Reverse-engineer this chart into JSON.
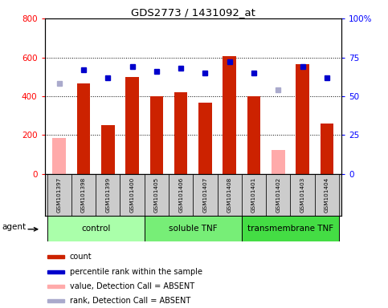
{
  "title": "GDS2773 / 1431092_at",
  "samples": [
    "GSM101397",
    "GSM101398",
    "GSM101399",
    "GSM101400",
    "GSM101405",
    "GSM101406",
    "GSM101407",
    "GSM101408",
    "GSM101401",
    "GSM101402",
    "GSM101403",
    "GSM101404"
  ],
  "count_values": [
    null,
    465,
    250,
    500,
    400,
    420,
    365,
    605,
    400,
    null,
    565,
    258
  ],
  "count_absent_values": [
    185,
    null,
    null,
    null,
    null,
    null,
    null,
    null,
    null,
    125,
    null,
    null
  ],
  "rank_values": [
    null,
    67,
    62,
    69,
    66,
    68,
    65,
    72,
    65,
    null,
    69,
    62
  ],
  "rank_absent_values": [
    58,
    null,
    null,
    null,
    null,
    null,
    null,
    null,
    null,
    54,
    null,
    null
  ],
  "groups": [
    {
      "label": "control",
      "start": 0,
      "end": 4,
      "color": "#aaffaa"
    },
    {
      "label": "soluble TNF",
      "start": 4,
      "end": 8,
      "color": "#77ee77"
    },
    {
      "label": "transmembrane TNF",
      "start": 8,
      "end": 12,
      "color": "#44dd44"
    }
  ],
  "ylim_left": [
    0,
    800
  ],
  "ylim_right": [
    0,
    100
  ],
  "yticks_left": [
    0,
    200,
    400,
    600,
    800
  ],
  "ytick_labels_left": [
    "0",
    "200",
    "400",
    "600",
    "800"
  ],
  "yticks_right": [
    0,
    25,
    50,
    75,
    100
  ],
  "ytick_labels_right": [
    "0",
    "25",
    "50",
    "75",
    "100%"
  ],
  "bar_color": "#cc2200",
  "bar_absent_color": "#ffaaaa",
  "dot_color": "#0000cc",
  "dot_absent_color": "#aaaacc",
  "bar_width": 0.55,
  "agent_label": "agent",
  "legend_items": [
    {
      "color": "#cc2200",
      "label": "count",
      "marker": "square"
    },
    {
      "color": "#0000cc",
      "label": "percentile rank within the sample",
      "marker": "square"
    },
    {
      "color": "#ffaaaa",
      "label": "value, Detection Call = ABSENT",
      "marker": "square"
    },
    {
      "color": "#aaaacc",
      "label": "rank, Detection Call = ABSENT",
      "marker": "square"
    }
  ]
}
